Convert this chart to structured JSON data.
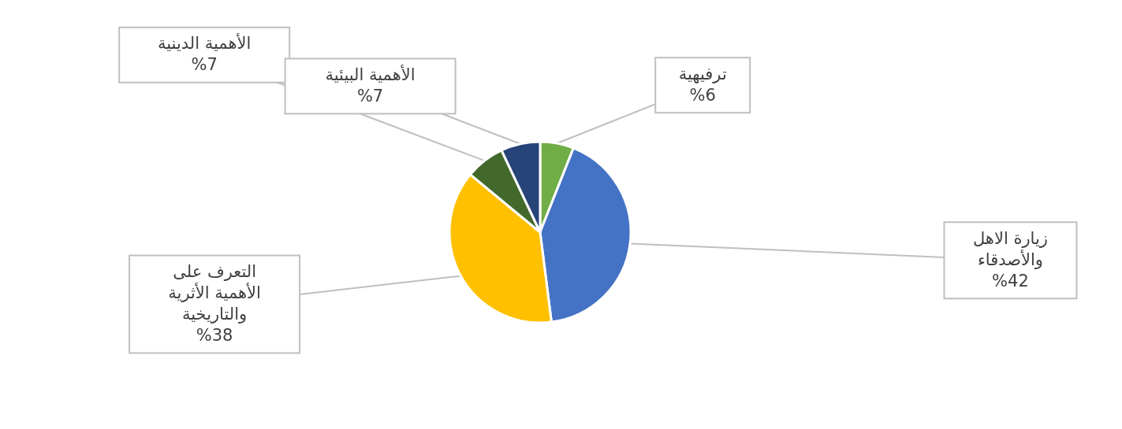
{
  "chart_data": {
    "type": "pie",
    "categories": [
      "ترفيهية",
      "زيارة الاهل والأصدقاء",
      "التعرف على الأهمية الأثرية والتاريخية",
      "الأهمية الدينية",
      "الأهمية البيئية"
    ],
    "values": [
      6,
      42,
      38,
      7,
      7
    ],
    "colors": [
      "#70ad47",
      "#4472c4",
      "#ffc000",
      "#43682b",
      "#264478"
    ],
    "value_labels": [
      "%6",
      "%42",
      "%38",
      "%7",
      "%7"
    ]
  }
}
